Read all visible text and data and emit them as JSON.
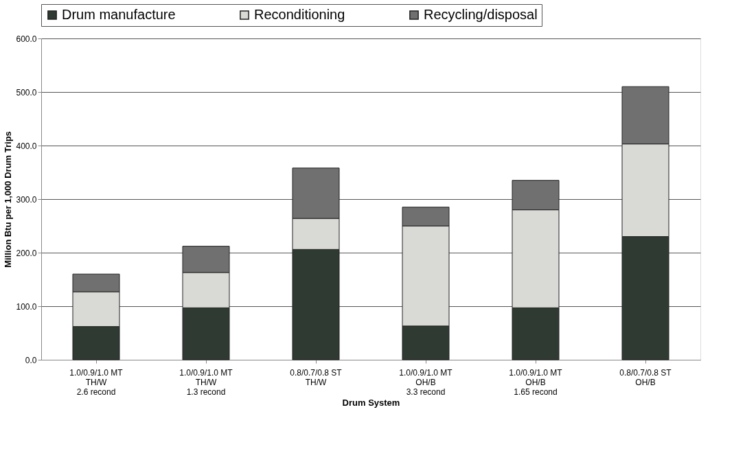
{
  "chart_data": {
    "type": "bar",
    "stacked": true,
    "xlabel": "Drum System",
    "ylabel": "Million Btu per 1,000 Drum Trips",
    "categories": [
      "1.0/0.9/1.0 MT\nTH/W\n2.6 recond",
      "1.0/0.9/1.0 MT\nTH/W\n1.3 recond",
      "0.8/0.7/0.8 ST\nTH/W",
      "1.0/0.9/1.0 MT\nOH/B\n3.3 recond",
      "1.0/0.9/1.0 MT\nOH/B\n1.65 recond",
      "0.8/0.7/0.8 ST\nOH/B"
    ],
    "series": [
      {
        "name": "Drum manufacture",
        "color": "#2f3a33",
        "values": [
          62,
          97,
          206,
          63,
          97,
          230
        ]
      },
      {
        "name": "Reconditioning",
        "color": "#d9d9d6",
        "values": [
          65,
          66,
          58,
          187,
          183,
          173
        ]
      },
      {
        "name": "Recycling/disposal",
        "color": "#707070",
        "values": [
          33,
          49,
          94,
          35,
          55,
          107
        ]
      }
    ],
    "ylim": [
      0,
      600
    ],
    "yticks": [
      {
        "value": 0,
        "label": "0.0"
      },
      {
        "value": 100,
        "label": "100.0"
      },
      {
        "value": 200,
        "label": "200.0"
      },
      {
        "value": 300,
        "label": "300.0"
      },
      {
        "value": 400,
        "label": "400.0"
      },
      {
        "value": 500,
        "label": "500.0"
      },
      {
        "value": 600,
        "label": "600.0"
      }
    ],
    "grid": "y",
    "legend": "top"
  }
}
